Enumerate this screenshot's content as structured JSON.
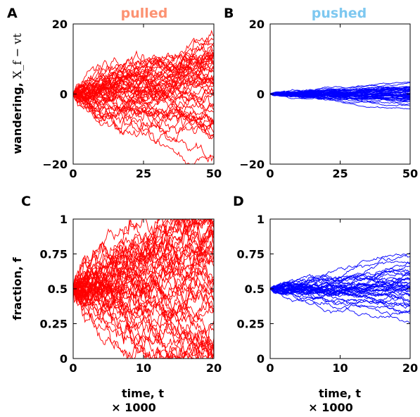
{
  "chart_data": [
    {
      "id": "A",
      "type": "line",
      "panel_label": "A",
      "title": "pulled",
      "title_color": "#fc9272",
      "line_color": "#ff0000",
      "ylabel": "wandering, ",
      "ylabel_math": "X_f − vt",
      "xlim": [
        0,
        50
      ],
      "ylim": [
        -20,
        20
      ],
      "xticks": [
        0,
        25,
        50
      ],
      "yticks": [
        20,
        0,
        -20
      ],
      "ytick_labels": [
        "20",
        "0",
        "−20"
      ],
      "n_series": 50,
      "spread_end": 7,
      "seed": 11
    },
    {
      "id": "B",
      "type": "line",
      "panel_label": "B",
      "title": "pushed",
      "title_color": "#7ec8f0",
      "line_color": "#0000ff",
      "xlim": [
        0,
        50
      ],
      "ylim": [
        -20,
        20
      ],
      "xticks": [
        0,
        25,
        50
      ],
      "yticks": [
        20,
        0,
        -20
      ],
      "ytick_labels": [
        "20",
        "0",
        "−20"
      ],
      "n_series": 50,
      "spread_end": 1,
      "seed": 23
    },
    {
      "id": "C",
      "type": "line",
      "panel_label": "C",
      "line_color": "#ff0000",
      "ylabel": "fraction, f",
      "xlabel": "time, t",
      "xlabel_sub": "× 1000",
      "xlim": [
        0,
        20
      ],
      "ylim": [
        0,
        1
      ],
      "xticks": [
        0,
        10,
        20
      ],
      "yticks": [
        1,
        0.75,
        0.5,
        0.25,
        0
      ],
      "ytick_labels": [
        "1",
        "0.75",
        "0.5",
        "0.25",
        "0"
      ],
      "n_series": 50,
      "spread_end": 0.3,
      "seed": 37
    },
    {
      "id": "D",
      "type": "line",
      "panel_label": "D",
      "line_color": "#0000ff",
      "xlabel": "time, t",
      "xlabel_sub": "× 1000",
      "xlim": [
        0,
        20
      ],
      "ylim": [
        0,
        1
      ],
      "xticks": [
        0,
        10,
        20
      ],
      "yticks": [
        1,
        0.75,
        0.5,
        0.25,
        0
      ],
      "ytick_labels": [
        "1",
        "0.75",
        "0.5",
        "0.25",
        "0"
      ],
      "n_series": 40,
      "spread_end": 0.07,
      "seed": 53
    }
  ]
}
